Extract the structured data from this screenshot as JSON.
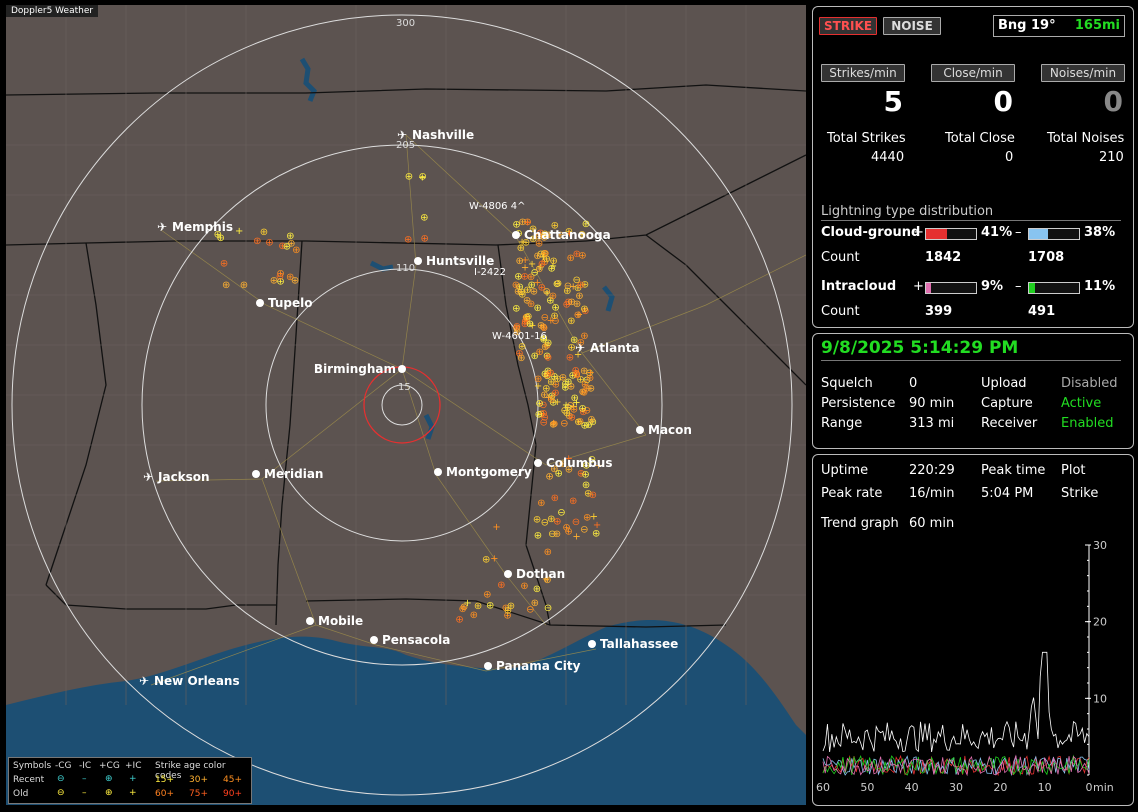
{
  "app_title": "Doppler5 Weather",
  "map": {
    "range_labels": [
      "300",
      "205",
      "110",
      "15"
    ],
    "cities": [
      {
        "name": "Nashville",
        "airport": true
      },
      {
        "name": "Memphis",
        "airport": true
      },
      {
        "name": "Chattanooga",
        "airport": false
      },
      {
        "name": "Huntsville",
        "airport": false
      },
      {
        "name": "Tupelo",
        "airport": false
      },
      {
        "name": "Atlanta",
        "airport": true
      },
      {
        "name": "Birmingham",
        "airport": false
      },
      {
        "name": "Macon",
        "airport": false
      },
      {
        "name": "Jackson",
        "airport": true
      },
      {
        "name": "Meridian",
        "airport": false
      },
      {
        "name": "Montgomery",
        "airport": false
      },
      {
        "name": "Columbus",
        "airport": false
      },
      {
        "name": "Dothan",
        "airport": false
      },
      {
        "name": "Mobile",
        "airport": false
      },
      {
        "name": "Pensacola",
        "airport": false
      },
      {
        "name": "Tallahassee",
        "airport": false
      },
      {
        "name": "Panama City",
        "airport": false
      },
      {
        "name": "New Orleans",
        "airport": true
      }
    ],
    "storm_tags": [
      "W-4806 4^",
      "I-2422",
      "W-4601-16"
    ],
    "legend": {
      "symbols_label": "Symbols",
      "cols": [
        "-CG",
        "-IC",
        "+CG",
        "+IC"
      ],
      "rows": [
        "Recent",
        "Old"
      ],
      "age_title": "Strike age color codes",
      "age_recent": [
        "15+",
        "30+",
        "45+"
      ],
      "age_old": [
        "60+",
        "75+",
        "90+"
      ]
    }
  },
  "status": {
    "strike_btn": "STRIKE",
    "noise_btn": "NOISE",
    "bearing": "Bng 19°",
    "distance": "165mi",
    "strikes_min_label": "Strikes/min",
    "close_min_label": "Close/min",
    "noises_min_label": "Noises/min",
    "strikes_min": "5",
    "close_min": "0",
    "noises_min": "0",
    "total_strikes_label": "Total Strikes",
    "total_close_label": "Total Close",
    "total_noises_label": "Total Noises",
    "total_strikes": "4440",
    "total_close": "0",
    "total_noises": "210",
    "dist_title": "Lightning type distribution",
    "cg_label": "Cloud-ground",
    "ic_label": "Intracloud",
    "count_label": "Count",
    "plus": "+",
    "minus": "–",
    "cg_pos_pct": "41%",
    "cg_neg_pct": "38%",
    "ic_pos_pct": "9%",
    "ic_neg_pct": "11%",
    "cg_pos_count": "1842",
    "cg_neg_count": "1708",
    "ic_pos_count": "399",
    "ic_neg_count": "491",
    "cg_pos_frac": 0.41,
    "cg_neg_frac": 0.38,
    "ic_pos_frac": 0.09,
    "ic_neg_frac": 0.11
  },
  "settings": {
    "datetime": "9/8/2025 5:14:29 PM",
    "squelch_label": "Squelch",
    "squelch": "0",
    "persistence_label": "Persistence",
    "persistence": "90 min",
    "range_label": "Range",
    "range": "313 mi",
    "upload_label": "Upload",
    "upload": "Disabled",
    "capture_label": "Capture",
    "capture": "Active",
    "receiver_label": "Receiver",
    "receiver": "Enabled"
  },
  "trend": {
    "uptime_label": "Uptime",
    "uptime": "220:29",
    "peak_time_label": "Peak time",
    "peak_time": "5:04 PM",
    "plot_label": "Plot",
    "plot": "Strike",
    "peak_rate_label": "Peak rate",
    "peak_rate": "16/min",
    "trend_graph_label": "Trend graph",
    "trend_graph": "60 min",
    "y_ticks": [
      "30",
      "20",
      "10"
    ],
    "x_ticks": [
      "60",
      "50",
      "40",
      "30",
      "20",
      "10",
      "0"
    ],
    "x_unit": "min"
  },
  "colors": {
    "strike_red": "#e53030",
    "green_text": "#22dd22",
    "cg_neg_blue": "#88c4f0",
    "ic_pos_pink": "#e070b0",
    "ic_neg_green": "#20d020"
  }
}
